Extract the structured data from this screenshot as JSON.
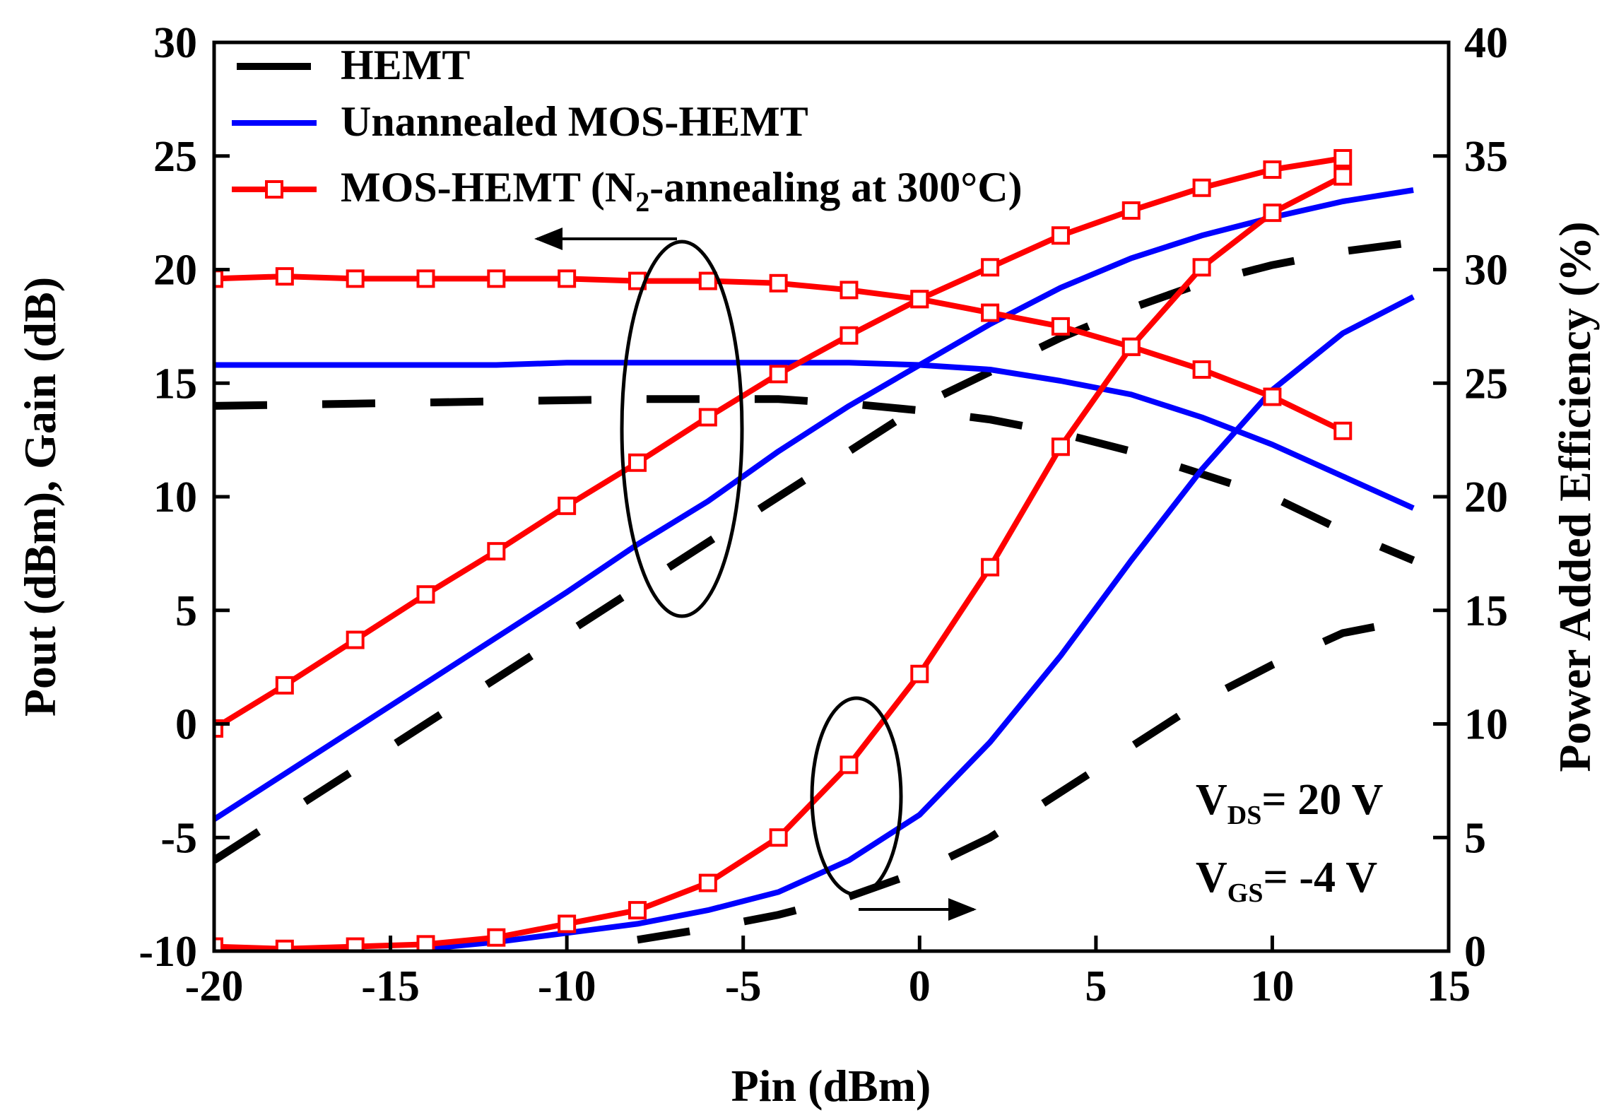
{
  "chart_data": {
    "type": "line",
    "xlabel": "Pin (dBm)",
    "ylabel_left": "Pout (dBm), Gain (dB)",
    "ylabel_right": "Power Added Efficiency (%)",
    "xlim": [
      -20,
      15
    ],
    "ylim_left": [
      -10,
      30
    ],
    "ylim_right": [
      0,
      40
    ],
    "xticks": [
      "-20",
      "-15",
      "-10",
      "-5",
      "0",
      "5",
      "10",
      "15"
    ],
    "yticks_left": [
      "-10",
      "-5",
      "0",
      "5",
      "10",
      "15",
      "20",
      "25",
      "30"
    ],
    "yticks_right": [
      "0",
      "5",
      "10",
      "15",
      "20",
      "25",
      "30",
      "35",
      "40"
    ],
    "legend": [
      {
        "label": "HEMT",
        "color": "#000000",
        "style": "dash"
      },
      {
        "label": "Unannealed MOS-HEMT",
        "color": "#0000ff",
        "style": "solid"
      },
      {
        "label_main": "MOS-HEMT (N",
        "label_sub": "2",
        "label_tail": "-annealing at 300°C)",
        "color": "#ff0000",
        "style": "solid-square"
      }
    ],
    "annotations": {
      "vds_main": "V",
      "vds_sub": "DS",
      "vds_tail": "= 20 V",
      "vgs_main": "V",
      "vgs_sub": "GS",
      "vgs_tail": "= -4 V"
    },
    "series": [
      {
        "name": "HEMT Pout",
        "axis": "left",
        "color": "#000000",
        "style": "dash",
        "x": [
          -20,
          -16,
          -12,
          -8,
          -4,
          -2,
          0,
          2,
          4,
          6,
          8,
          10,
          12,
          14
        ],
        "y": [
          -6,
          -2,
          2,
          6,
          10,
          12,
          14,
          15.5,
          17,
          18.3,
          19.4,
          20.2,
          20.8,
          21.2
        ]
      },
      {
        "name": "HEMT Gain",
        "axis": "left",
        "color": "#000000",
        "style": "dash",
        "x": [
          -20,
          -16,
          -12,
          -8,
          -4,
          -2,
          0,
          2,
          4,
          6,
          8,
          10,
          12,
          14
        ],
        "y": [
          14,
          14.1,
          14.2,
          14.3,
          14.3,
          14.1,
          13.8,
          13.4,
          12.8,
          12.0,
          11.0,
          10.0,
          8.5,
          7.2
        ]
      },
      {
        "name": "HEMT PAE",
        "axis": "right",
        "color": "#000000",
        "style": "dash",
        "x": [
          -8,
          -6,
          -4,
          -2,
          0,
          2,
          4,
          6,
          8,
          10,
          12,
          14
        ],
        "y": [
          0.5,
          1.0,
          1.6,
          2.4,
          3.5,
          5.0,
          7.0,
          9.0,
          11.0,
          12.6,
          14.0,
          14.6
        ]
      },
      {
        "name": "Unannealed MOS-HEMT Pout",
        "axis": "left",
        "color": "#0000ff",
        "style": "solid",
        "x": [
          -20,
          -18,
          -16,
          -14,
          -12,
          -10,
          -8,
          -6,
          -4,
          -2,
          0,
          2,
          4,
          6,
          8,
          10,
          12,
          14
        ],
        "y": [
          -4.2,
          -2.2,
          -0.2,
          1.8,
          3.8,
          5.8,
          7.9,
          9.8,
          12.0,
          14.0,
          15.8,
          17.6,
          19.2,
          20.5,
          21.5,
          22.3,
          23.0,
          23.5
        ]
      },
      {
        "name": "Unannealed MOS-HEMT Gain",
        "axis": "left",
        "color": "#0000ff",
        "style": "solid",
        "x": [
          -20,
          -18,
          -16,
          -14,
          -12,
          -10,
          -8,
          -6,
          -4,
          -2,
          0,
          2,
          4,
          6,
          8,
          10,
          12,
          14
        ],
        "y": [
          15.8,
          15.8,
          15.8,
          15.8,
          15.8,
          15.9,
          15.9,
          15.9,
          15.9,
          15.9,
          15.8,
          15.6,
          15.1,
          14.5,
          13.5,
          12.3,
          10.9,
          9.5
        ]
      },
      {
        "name": "Unannealed MOS-HEMT PAE",
        "axis": "right",
        "color": "#0000ff",
        "style": "solid",
        "x": [
          -14,
          -12,
          -10,
          -8,
          -6,
          -4,
          -2,
          0,
          2,
          4,
          6,
          8,
          10,
          12,
          14
        ],
        "y": [
          0.1,
          0.4,
          0.8,
          1.2,
          1.8,
          2.6,
          4.0,
          6.0,
          9.2,
          13.0,
          17.2,
          21.2,
          24.7,
          27.2,
          28.8
        ]
      },
      {
        "name": "N2-annealed MOS-HEMT Pout",
        "axis": "left",
        "color": "#ff0000",
        "style": "solid-square",
        "x": [
          -20,
          -18,
          -16,
          -14,
          -12,
          -10,
          -8,
          -6,
          -4,
          -2,
          0,
          2,
          4,
          6,
          8,
          10,
          12
        ],
        "y": [
          -0.2,
          1.7,
          3.7,
          5.7,
          7.6,
          9.6,
          11.5,
          13.5,
          15.4,
          17.1,
          18.7,
          20.1,
          21.5,
          22.6,
          23.6,
          24.4,
          24.9
        ]
      },
      {
        "name": "N2-annealed MOS-HEMT Gain",
        "axis": "left",
        "color": "#ff0000",
        "style": "solid-square",
        "x": [
          -20,
          -18,
          -16,
          -14,
          -12,
          -10,
          -8,
          -6,
          -4,
          -2,
          0,
          2,
          4,
          6,
          8,
          10,
          12
        ],
        "y": [
          19.6,
          19.7,
          19.6,
          19.6,
          19.6,
          19.6,
          19.5,
          19.5,
          19.4,
          19.1,
          18.7,
          18.1,
          17.5,
          16.6,
          15.6,
          14.4,
          12.9
        ]
      },
      {
        "name": "N2-annealed MOS-HEMT PAE",
        "axis": "right",
        "color": "#ff0000",
        "style": "solid-square",
        "x": [
          -20,
          -18,
          -16,
          -14,
          -12,
          -10,
          -8,
          -6,
          -4,
          -2,
          0,
          2,
          4,
          6,
          8,
          10,
          12
        ],
        "y": [
          0.2,
          0.1,
          0.2,
          0.3,
          0.6,
          1.2,
          1.8,
          3.0,
          5.0,
          8.2,
          12.2,
          16.9,
          22.2,
          26.6,
          30.1,
          32.5,
          34.1
        ]
      }
    ]
  }
}
